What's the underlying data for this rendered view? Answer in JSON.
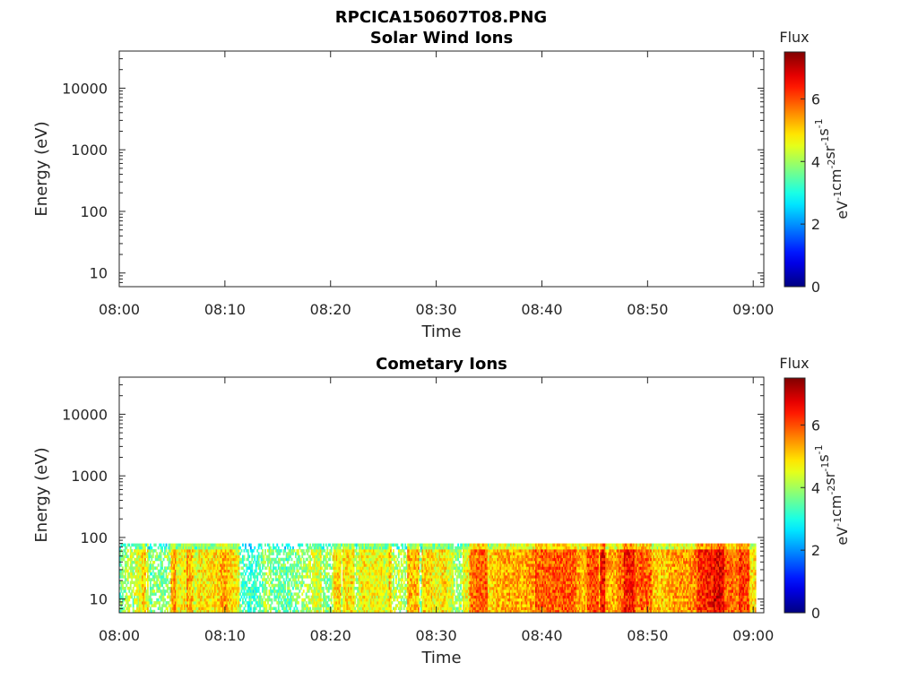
{
  "figure": {
    "title": "RPCICA150607T08.PNG"
  },
  "chart_data": [
    {
      "type": "heatmap",
      "title": "Solar Wind Ions",
      "xlabel": "Time",
      "ylabel": "Energy (eV)",
      "x_ticks": [
        "08:00",
        "08:10",
        "08:20",
        "08:30",
        "08:40",
        "08:50",
        "09:00"
      ],
      "xlim": [
        "08:00",
        "09:01"
      ],
      "y_scale": "log",
      "y_ticks": [
        "10",
        "100",
        "1000",
        "10000"
      ],
      "ylim": [
        6,
        40000
      ],
      "colorbar": {
        "label": "Flux",
        "units": "eV-1cm-2sr-1s-1",
        "ticks": [
          "0",
          "2",
          "4",
          "6"
        ],
        "range": [
          0,
          7.5
        ],
        "colormap": "jet"
      },
      "data": "empty — no flux recorded"
    },
    {
      "type": "heatmap",
      "title": "Cometary Ions",
      "xlabel": "Time",
      "ylabel": "Energy (eV)",
      "x_ticks": [
        "08:00",
        "08:10",
        "08:20",
        "08:30",
        "08:40",
        "08:50",
        "09:00"
      ],
      "xlim": [
        "08:00",
        "09:01"
      ],
      "y_scale": "log",
      "y_ticks": [
        "10",
        "100",
        "1000",
        "10000"
      ],
      "ylim": [
        6,
        40000
      ],
      "colorbar": {
        "label": "Flux",
        "units": "eV-1cm-2sr-1s-1",
        "ticks": [
          "0",
          "2",
          "4",
          "6"
        ],
        "range": [
          0,
          7.5
        ],
        "colormap": "jet"
      },
      "energy_band_eV": [
        6,
        80
      ],
      "time_intensity_profile": {
        "time": [
          "08:00",
          "08:02",
          "08:04",
          "08:06",
          "08:08",
          "08:10",
          "08:12",
          "08:14",
          "08:16",
          "08:18",
          "08:20",
          "08:22",
          "08:24",
          "08:26",
          "08:28",
          "08:30",
          "08:32",
          "08:34",
          "08:36",
          "08:38",
          "08:40",
          "08:42",
          "08:44",
          "08:46",
          "08:48",
          "08:50",
          "08:52",
          "08:54",
          "08:56",
          "08:58",
          "09:00"
        ],
        "typical_flux": [
          3.2,
          4.3,
          4.0,
          4.9,
          4.4,
          4.7,
          3.6,
          3.8,
          3.6,
          4.2,
          4.5,
          4.4,
          4.5,
          4.5,
          4.4,
          4.5,
          4.4,
          5.0,
          5.2,
          5.2,
          5.5,
          5.6,
          5.8,
          5.7,
          5.6,
          5.5,
          5.4,
          5.7,
          5.9,
          5.6,
          5.3
        ]
      }
    }
  ]
}
